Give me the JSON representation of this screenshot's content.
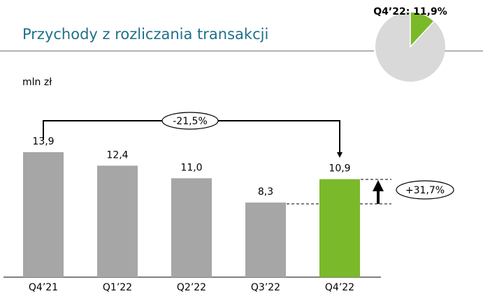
{
  "chart_data": [
    {
      "type": "bar",
      "title": "Przychody z rozliczania transakcji",
      "unit": "mln zł",
      "categories": [
        "Q4’21",
        "Q1’22",
        "Q2’22",
        "Q3’22",
        "Q4’22"
      ],
      "values": [
        13.9,
        12.4,
        11.0,
        8.3,
        10.9
      ],
      "value_labels": [
        "13,9",
        "12,4",
        "11,0",
        "8,3",
        "10,9"
      ],
      "colors": [
        "#a6a6a6",
        "#a6a6a6",
        "#a6a6a6",
        "#a6a6a6",
        "#7ab929"
      ],
      "annotations": [
        "-21,5%",
        "+31,7%"
      ]
    },
    {
      "type": "pie",
      "values": [
        11.9
      ],
      "value_labels": [
        "Q4’22: 11,9%"
      ],
      "color": "#7ab929",
      "background_color": "#d9d9d9"
    }
  ]
}
